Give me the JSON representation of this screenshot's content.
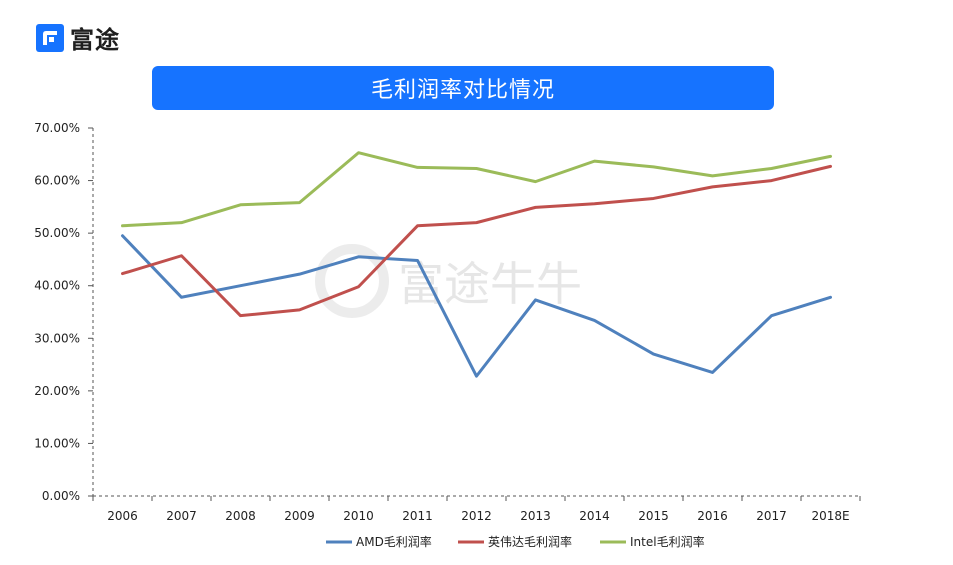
{
  "brand": {
    "name": "富途",
    "accent": "#1673ff"
  },
  "watermark": {
    "text": "富途牛牛"
  },
  "chart_data": {
    "type": "line",
    "title": "毛利润率对比情况",
    "categories": [
      "2006",
      "2007",
      "2008",
      "2009",
      "2010",
      "2011",
      "2012",
      "2013",
      "2014",
      "2015",
      "2016",
      "2017",
      "2018E"
    ],
    "yticks": [
      "0.00%",
      "10.00%",
      "20.00%",
      "30.00%",
      "40.00%",
      "50.00%",
      "60.00%",
      "70.00%"
    ],
    "ylim": [
      0,
      70
    ],
    "series": [
      {
        "name": "AMD毛利润率",
        "color": "#4f81bd",
        "values": [
          49.5,
          37.8,
          40.0,
          42.2,
          45.5,
          44.8,
          22.8,
          37.3,
          33.4,
          27.0,
          23.5,
          34.3,
          37.8
        ]
      },
      {
        "name": "英伟达毛利润率",
        "color": "#c0504d",
        "values": [
          42.3,
          45.7,
          34.3,
          35.4,
          39.8,
          51.4,
          52.0,
          54.9,
          55.6,
          56.6,
          58.8,
          60.0,
          62.7
        ]
      },
      {
        "name": "Intel毛利润率",
        "color": "#9bbb59",
        "values": [
          51.4,
          52.0,
          55.4,
          55.8,
          65.3,
          62.5,
          62.3,
          59.8,
          63.7,
          62.6,
          60.9,
          62.3,
          64.6
        ]
      }
    ]
  }
}
